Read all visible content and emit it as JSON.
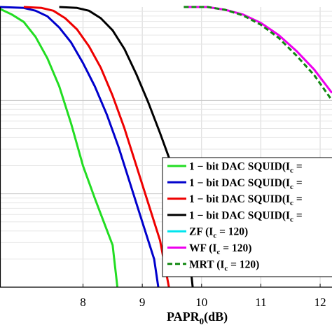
{
  "chart_data": {
    "type": "line",
    "xlabel": "PAPR",
    "xlabel_subscript": "0",
    "xlabel_unit": "(dB)",
    "ylabel": "",
    "xlim": [
      6.6,
      12.2
    ],
    "ylim_log10": [
      -3.0,
      0.0
    ],
    "grid": true,
    "legend_placement": "lower-right",
    "x_ticks": [
      8,
      9,
      10,
      11,
      12
    ],
    "series": [
      {
        "name": "1 − bit DAC SQUID(I",
        "legend_sub": "c",
        "legend_tail": " =",
        "color": "#22dd22",
        "dash": "",
        "points": [
          [
            6.6,
            -0.02
          ],
          [
            6.8,
            -0.08
          ],
          [
            7.0,
            -0.16
          ],
          [
            7.2,
            -0.32
          ],
          [
            7.4,
            -0.55
          ],
          [
            7.6,
            -0.85
          ],
          [
            7.8,
            -1.25
          ],
          [
            8.0,
            -1.7
          ],
          [
            8.2,
            -2.05
          ],
          [
            8.35,
            -2.3
          ],
          [
            8.5,
            -2.55
          ],
          [
            8.58,
            -3.0
          ]
        ]
      },
      {
        "name": "1 − bit DAC SQUID(I",
        "legend_sub": "c",
        "legend_tail": " =",
        "color": "#0000cc",
        "dash": "",
        "points": [
          [
            6.6,
            0.0
          ],
          [
            7.0,
            -0.01
          ],
          [
            7.2,
            -0.04
          ],
          [
            7.4,
            -0.1
          ],
          [
            7.6,
            -0.22
          ],
          [
            7.8,
            -0.38
          ],
          [
            8.0,
            -0.6
          ],
          [
            8.2,
            -0.85
          ],
          [
            8.4,
            -1.15
          ],
          [
            8.6,
            -1.5
          ],
          [
            8.8,
            -1.9
          ],
          [
            9.0,
            -2.3
          ],
          [
            9.2,
            -2.7
          ],
          [
            9.27,
            -3.0
          ]
        ]
      },
      {
        "name": "1 − bit DAC SQUID(I",
        "legend_sub": "c",
        "legend_tail": " =",
        "color": "#ee0000",
        "dash": "",
        "points": [
          [
            7.0,
            0.0
          ],
          [
            7.3,
            -0.01
          ],
          [
            7.5,
            -0.04
          ],
          [
            7.7,
            -0.12
          ],
          [
            7.9,
            -0.24
          ],
          [
            8.1,
            -0.42
          ],
          [
            8.3,
            -0.65
          ],
          [
            8.5,
            -0.95
          ],
          [
            8.7,
            -1.3
          ],
          [
            8.9,
            -1.7
          ],
          [
            9.1,
            -2.1
          ],
          [
            9.3,
            -2.5
          ],
          [
            9.45,
            -3.0
          ]
        ]
      },
      {
        "name": "1 − bit DAC SQUID(I",
        "legend_sub": "c",
        "legend_tail": " =",
        "color": "#000000",
        "dash": "",
        "points": [
          [
            7.6,
            0.0
          ],
          [
            7.9,
            -0.01
          ],
          [
            8.1,
            -0.04
          ],
          [
            8.3,
            -0.12
          ],
          [
            8.5,
            -0.25
          ],
          [
            8.7,
            -0.45
          ],
          [
            8.9,
            -0.72
          ],
          [
            9.1,
            -1.02
          ],
          [
            9.3,
            -1.35
          ],
          [
            9.5,
            -1.7
          ],
          [
            9.7,
            -2.1
          ],
          [
            9.85,
            -3.0
          ]
        ]
      },
      {
        "name": "ZF (I",
        "legend_sub": "c",
        "legend_tail": " = 120)",
        "color": "#00e5ee",
        "dash": "",
        "points": []
      },
      {
        "name": "WF (I",
        "legend_sub": "c",
        "legend_tail": " = 120)",
        "color": "#ee00ee",
        "dash": "",
        "points": [
          [
            9.7,
            0.0
          ],
          [
            10.1,
            0.0
          ],
          [
            10.4,
            -0.03
          ],
          [
            10.7,
            -0.08
          ],
          [
            11.0,
            -0.17
          ],
          [
            11.3,
            -0.3
          ],
          [
            11.6,
            -0.47
          ],
          [
            11.9,
            -0.67
          ],
          [
            12.2,
            -0.92
          ]
        ]
      },
      {
        "name": "MRT (I",
        "legend_sub": "c",
        "legend_tail": " = 120)",
        "color": "#118811",
        "dash": "7,4",
        "points": [
          [
            9.7,
            0.0
          ],
          [
            10.1,
            0.0
          ],
          [
            10.4,
            -0.03
          ],
          [
            10.7,
            -0.09
          ],
          [
            11.0,
            -0.19
          ],
          [
            11.3,
            -0.33
          ],
          [
            11.6,
            -0.52
          ],
          [
            11.9,
            -0.73
          ],
          [
            12.2,
            -1.0
          ]
        ]
      }
    ]
  }
}
